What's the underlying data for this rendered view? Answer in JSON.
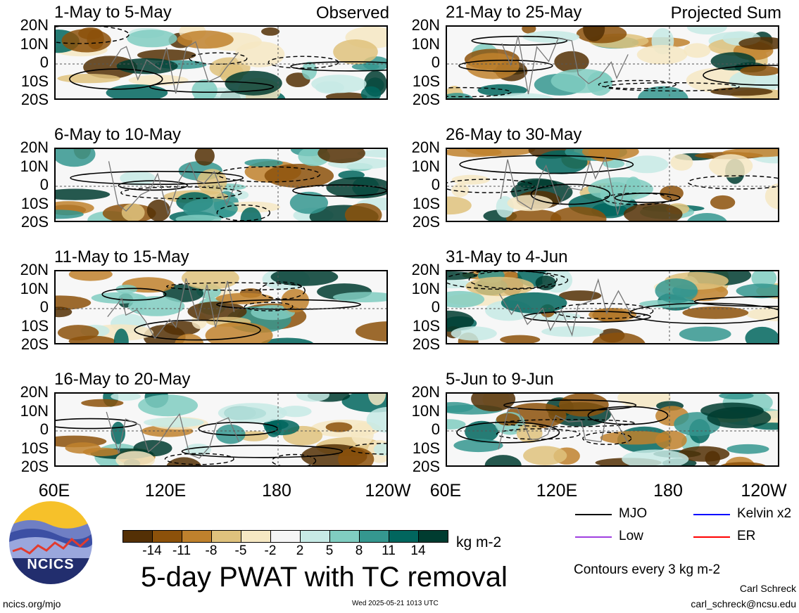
{
  "chart_data": {
    "type": "heatmap",
    "title": "5-day PWAT with TC removal",
    "column_headers": [
      "Observed",
      "Projected Sum"
    ],
    "panels_left": [
      "1-May to 5-May",
      "6-May to 10-May",
      "11-May to 15-May",
      "16-May to 20-May"
    ],
    "panels_right": [
      "21-May to 25-May",
      "26-May to 30-May",
      "31-May to 4-Jun",
      "5-Jun to 9-Jun"
    ],
    "y_ticks": [
      "20N",
      "10N",
      "0",
      "10S",
      "20S"
    ],
    "x_ticks": [
      "60E",
      "120E",
      "180",
      "120W"
    ],
    "xlim": [
      60,
      240
    ],
    "ylim": [
      -20,
      20
    ],
    "colorbar": {
      "ticks": [
        "-14",
        "-11",
        "-8",
        "-5",
        "-2",
        "2",
        "5",
        "8",
        "11",
        "14"
      ],
      "units": "kg m-2",
      "colors": [
        "#543005",
        "#8c510a",
        "#bf812d",
        "#dfc27d",
        "#f6e8c3",
        "#f5f5f5",
        "#c7eae5",
        "#80cdc1",
        "#35978f",
        "#01665e",
        "#003c30"
      ]
    },
    "contour_legend": [
      {
        "label": "MJO",
        "color": "#000000"
      },
      {
        "label": "Kelvin x2",
        "color": "#0000ff"
      },
      {
        "label": "Low",
        "color": "#a040e0"
      },
      {
        "label": "ER",
        "color": "#ff0000"
      }
    ],
    "contour_note": "Contours every 3 kg m-2"
  },
  "footer": {
    "logo_text": "NCICS",
    "left_url": "ncics.org/mjo",
    "timestamp": "Wed 2025-05-21 1013 UTC",
    "author": "Carl Schreck",
    "email": "carl_schreck@ncsu.edu"
  }
}
